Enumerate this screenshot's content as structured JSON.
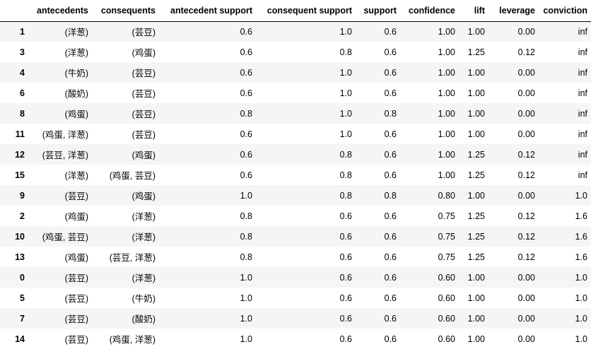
{
  "table": {
    "columns": [
      "",
      "antecedents",
      "consequents",
      "antecedent support",
      "consequent support",
      "support",
      "confidence",
      "lift",
      "leverage",
      "conviction"
    ],
    "rows": [
      {
        "index": "1",
        "antecedents": "(洋葱)",
        "consequents": "(芸豆)",
        "antecedent_support": "0.6",
        "consequent_support": "1.0",
        "support": "0.6",
        "confidence": "1.00",
        "lift": "1.00",
        "leverage": "0.00",
        "conviction": "inf"
      },
      {
        "index": "3",
        "antecedents": "(洋葱)",
        "consequents": "(鸡蛋)",
        "antecedent_support": "0.6",
        "consequent_support": "0.8",
        "support": "0.6",
        "confidence": "1.00",
        "lift": "1.25",
        "leverage": "0.12",
        "conviction": "inf"
      },
      {
        "index": "4",
        "antecedents": "(牛奶)",
        "consequents": "(芸豆)",
        "antecedent_support": "0.6",
        "consequent_support": "1.0",
        "support": "0.6",
        "confidence": "1.00",
        "lift": "1.00",
        "leverage": "0.00",
        "conviction": "inf"
      },
      {
        "index": "6",
        "antecedents": "(酸奶)",
        "consequents": "(芸豆)",
        "antecedent_support": "0.6",
        "consequent_support": "1.0",
        "support": "0.6",
        "confidence": "1.00",
        "lift": "1.00",
        "leverage": "0.00",
        "conviction": "inf"
      },
      {
        "index": "8",
        "antecedents": "(鸡蛋)",
        "consequents": "(芸豆)",
        "antecedent_support": "0.8",
        "consequent_support": "1.0",
        "support": "0.8",
        "confidence": "1.00",
        "lift": "1.00",
        "leverage": "0.00",
        "conviction": "inf"
      },
      {
        "index": "11",
        "antecedents": "(鸡蛋, 洋葱)",
        "consequents": "(芸豆)",
        "antecedent_support": "0.6",
        "consequent_support": "1.0",
        "support": "0.6",
        "confidence": "1.00",
        "lift": "1.00",
        "leverage": "0.00",
        "conviction": "inf"
      },
      {
        "index": "12",
        "antecedents": "(芸豆, 洋葱)",
        "consequents": "(鸡蛋)",
        "antecedent_support": "0.6",
        "consequent_support": "0.8",
        "support": "0.6",
        "confidence": "1.00",
        "lift": "1.25",
        "leverage": "0.12",
        "conviction": "inf"
      },
      {
        "index": "15",
        "antecedents": "(洋葱)",
        "consequents": "(鸡蛋, 芸豆)",
        "antecedent_support": "0.6",
        "consequent_support": "0.8",
        "support": "0.6",
        "confidence": "1.00",
        "lift": "1.25",
        "leverage": "0.12",
        "conviction": "inf"
      },
      {
        "index": "9",
        "antecedents": "(芸豆)",
        "consequents": "(鸡蛋)",
        "antecedent_support": "1.0",
        "consequent_support": "0.8",
        "support": "0.8",
        "confidence": "0.80",
        "lift": "1.00",
        "leverage": "0.00",
        "conviction": "1.0"
      },
      {
        "index": "2",
        "antecedents": "(鸡蛋)",
        "consequents": "(洋葱)",
        "antecedent_support": "0.8",
        "consequent_support": "0.6",
        "support": "0.6",
        "confidence": "0.75",
        "lift": "1.25",
        "leverage": "0.12",
        "conviction": "1.6"
      },
      {
        "index": "10",
        "antecedents": "(鸡蛋, 芸豆)",
        "consequents": "(洋葱)",
        "antecedent_support": "0.8",
        "consequent_support": "0.6",
        "support": "0.6",
        "confidence": "0.75",
        "lift": "1.25",
        "leverage": "0.12",
        "conviction": "1.6"
      },
      {
        "index": "13",
        "antecedents": "(鸡蛋)",
        "consequents": "(芸豆, 洋葱)",
        "antecedent_support": "0.8",
        "consequent_support": "0.6",
        "support": "0.6",
        "confidence": "0.75",
        "lift": "1.25",
        "leverage": "0.12",
        "conviction": "1.6"
      },
      {
        "index": "0",
        "antecedents": "(芸豆)",
        "consequents": "(洋葱)",
        "antecedent_support": "1.0",
        "consequent_support": "0.6",
        "support": "0.6",
        "confidence": "0.60",
        "lift": "1.00",
        "leverage": "0.00",
        "conviction": "1.0"
      },
      {
        "index": "5",
        "antecedents": "(芸豆)",
        "consequents": "(牛奶)",
        "antecedent_support": "1.0",
        "consequent_support": "0.6",
        "support": "0.6",
        "confidence": "0.60",
        "lift": "1.00",
        "leverage": "0.00",
        "conviction": "1.0"
      },
      {
        "index": "7",
        "antecedents": "(芸豆)",
        "consequents": "(酸奶)",
        "antecedent_support": "1.0",
        "consequent_support": "0.6",
        "support": "0.6",
        "confidence": "0.60",
        "lift": "1.00",
        "leverage": "0.00",
        "conviction": "1.0"
      },
      {
        "index": "14",
        "antecedents": "(芸豆)",
        "consequents": "(鸡蛋, 洋葱)",
        "antecedent_support": "1.0",
        "consequent_support": "0.6",
        "support": "0.6",
        "confidence": "0.60",
        "lift": "1.00",
        "leverage": "0.00",
        "conviction": "1.0"
      }
    ]
  }
}
